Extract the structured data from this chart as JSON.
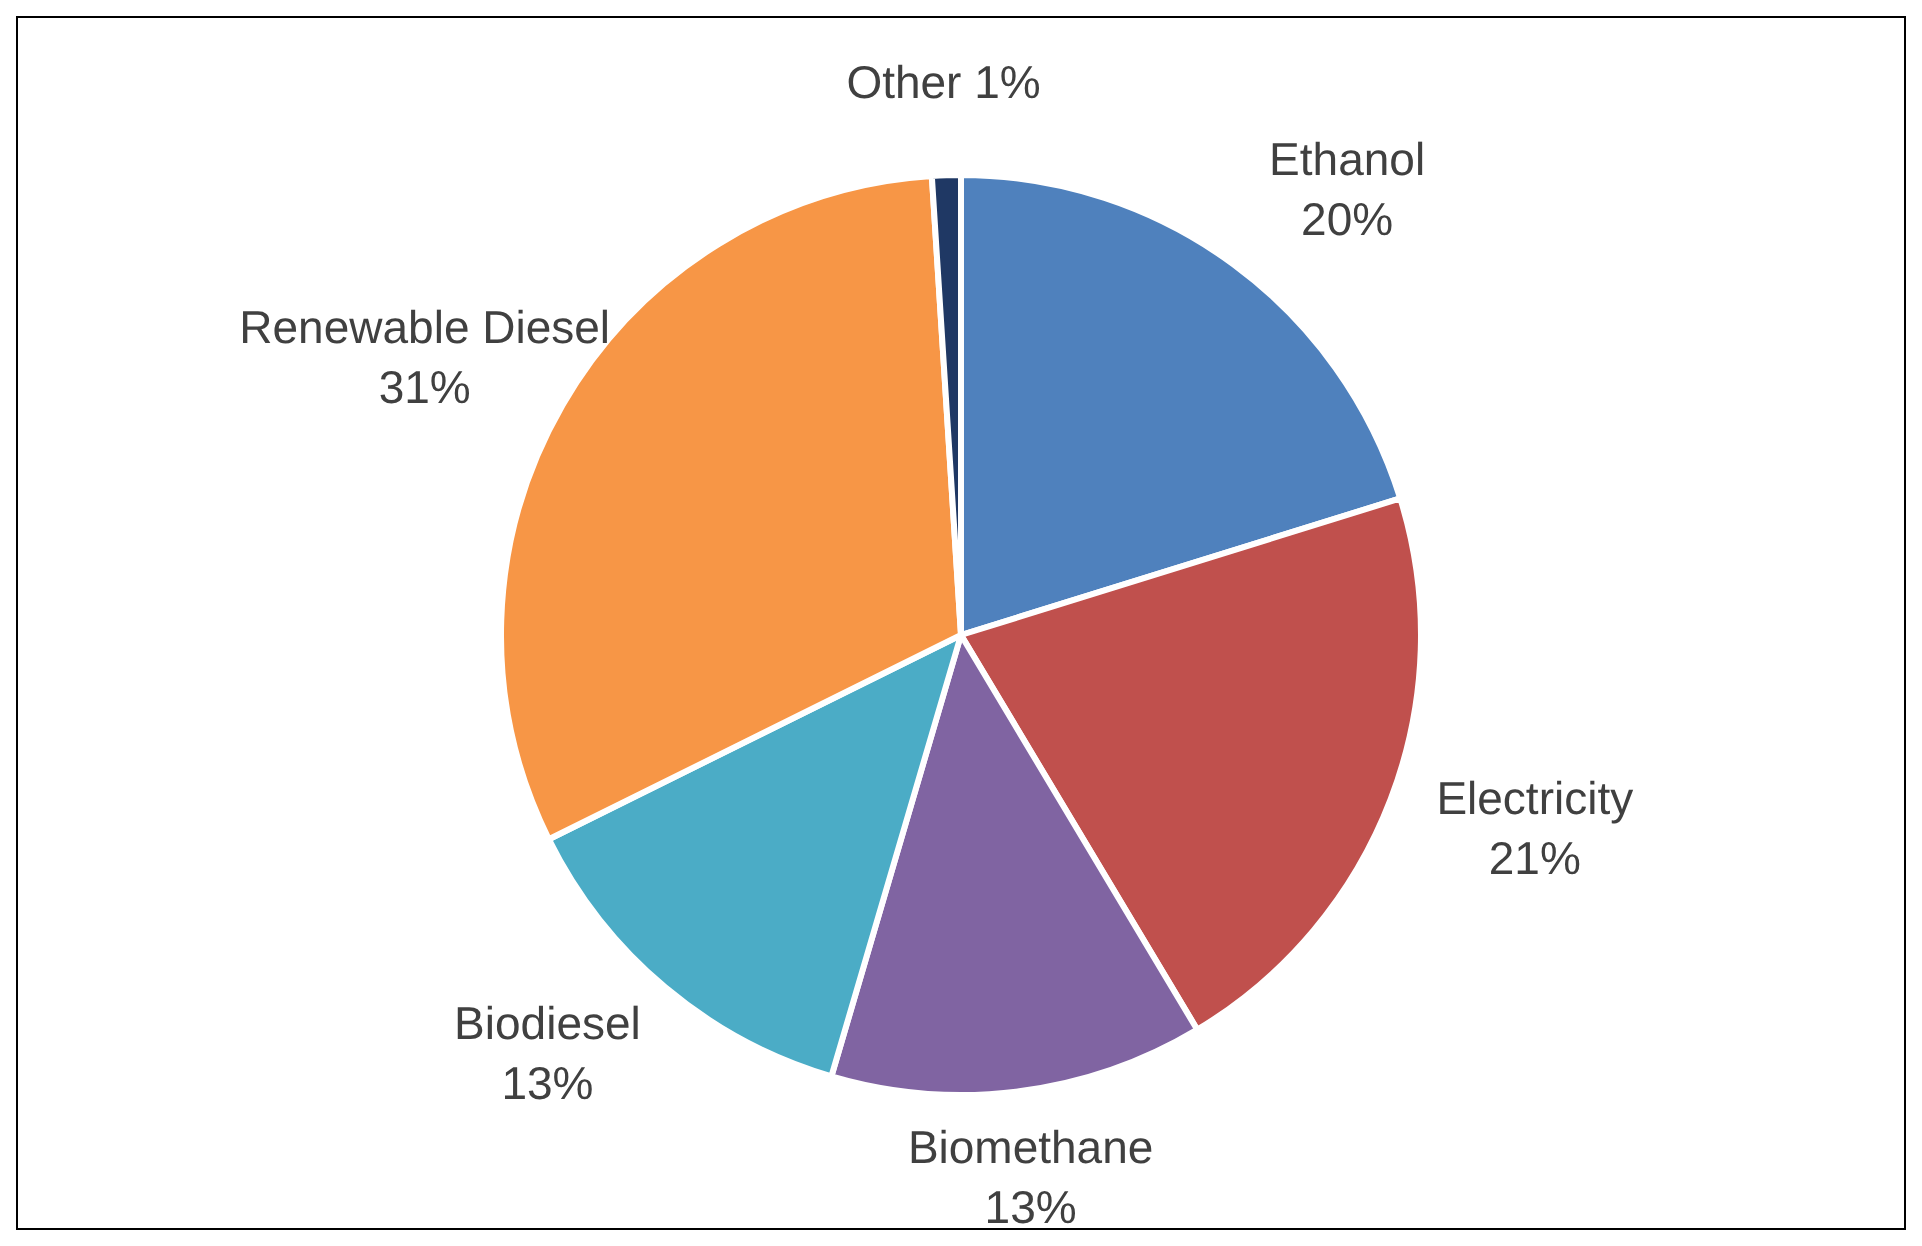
{
  "chart_data": {
    "type": "pie",
    "categories": [
      "Ethanol",
      "Electricity",
      "Biomethane",
      "Biodiesel",
      "Renewable Diesel",
      "Other"
    ],
    "values": [
      20,
      21,
      13,
      13,
      31,
      1
    ],
    "value_labels": [
      "20%",
      "21%",
      "13%",
      "13%",
      "31%",
      "1%"
    ],
    "colors": [
      "#4f81bd",
      "#c0504d",
      "#8064a2",
      "#4bacc6",
      "#f79646",
      "#1f3864"
    ],
    "legend": false
  }
}
